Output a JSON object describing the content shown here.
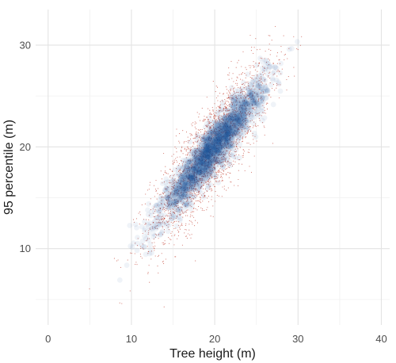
{
  "chart_data": {
    "type": "scatter",
    "xlabel": "Tree height (m)",
    "ylabel": "95 percentile (m)",
    "xlim": [
      -1.5,
      41
    ],
    "ylim": [
      2.5,
      33.5
    ],
    "x_ticks": [
      0,
      10,
      20,
      30,
      40
    ],
    "y_ticks": [
      10,
      20,
      30
    ],
    "grid": true,
    "legend": "none",
    "series": [
      {
        "style": "small-dots",
        "color": "#c0392b",
        "description_values": {
          "approx_regression": {
            "slope": 1.0,
            "intercept": 0.0
          },
          "x_range": [
            3.5,
            32
          ],
          "y_range": [
            3.5,
            32
          ]
        }
      },
      {
        "style": "large-translucent-points",
        "color": "#1f4e99",
        "description_values": {
          "approx_regression": {
            "slope": 1.0,
            "intercept": 0.0
          },
          "x_range": [
            8.5,
            31.5
          ],
          "y_range": [
            3.5,
            32.5
          ]
        }
      }
    ],
    "x_tick_labels": [
      "0",
      "10",
      "20",
      "30",
      "40"
    ],
    "y_tick_labels": [
      "10",
      "20",
      "30"
    ]
  }
}
